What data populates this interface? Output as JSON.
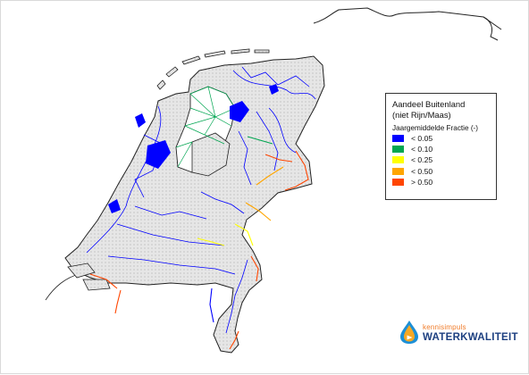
{
  "legend": {
    "title_line1": "Aandeel Buitenland",
    "title_line2": "(niet Rijn/Maas)",
    "subtitle": "Jaargemiddelde Fractie (-)",
    "classes": [
      {
        "label": "< 0.05",
        "color": "#0000ff"
      },
      {
        "label": "< 0.10",
        "color": "#00a651"
      },
      {
        "label": "< 0.25",
        "color": "#ffff00"
      },
      {
        "label": "< 0.50",
        "color": "#ffa500"
      },
      {
        "label": "> 0.50",
        "color": "#ff4500"
      }
    ]
  },
  "logo": {
    "line1": "kennisimpuls",
    "line2": "WATERKWALITEIT"
  },
  "colors": {
    "land": "#e4e4e4",
    "outline": "#222222",
    "network_main": "#0000ff"
  }
}
